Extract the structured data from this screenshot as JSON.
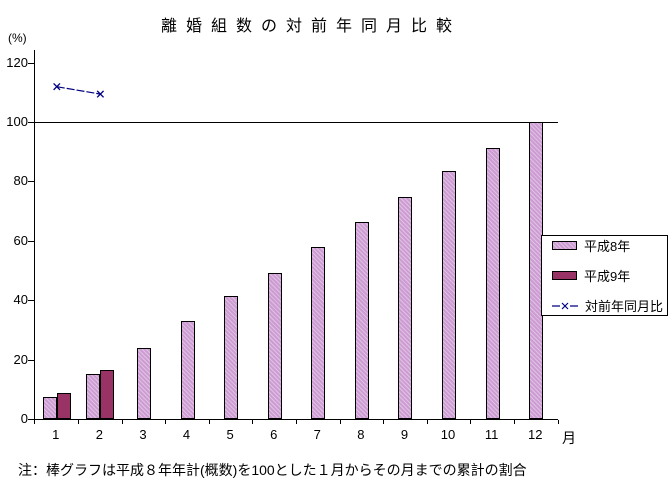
{
  "title": "離婚組数の対前年同月比較",
  "note": "注：棒グラフは平成８年年計(概数)を100とした１月からその月までの累計の割合",
  "y_axis": {
    "unit_label": "(%)",
    "ticks": [
      120,
      100,
      80,
      60,
      40,
      20,
      0
    ]
  },
  "x_axis": {
    "labels": [
      "1",
      "2",
      "3",
      "4",
      "5",
      "6",
      "7",
      "8",
      "9",
      "10",
      "11",
      "12"
    ],
    "unit_label": "月"
  },
  "legend": {
    "items": [
      {
        "label": "平成8年",
        "type": "bar",
        "color": "#CC9CD2"
      },
      {
        "label": "平成9年",
        "type": "bar",
        "color": "#993366"
      },
      {
        "label": "対前年同月比",
        "type": "line",
        "color": "#000080"
      }
    ]
  },
  "colors": {
    "bar_h8": "#CC9CD2",
    "bar_h9": "#993366",
    "line": "#000080",
    "axis": "#000000",
    "background": "#FFFFFF"
  },
  "chart_data": {
    "type": "bar",
    "title": "離婚組数の対前年同月比較",
    "xlabel": "月",
    "ylabel": "(%)",
    "ylim": [
      0,
      124
    ],
    "yticks": [
      0,
      20,
      40,
      60,
      80,
      100,
      120
    ],
    "grid": false,
    "reference_line_y": 100,
    "legend_position": "right",
    "categories": [
      "1",
      "2",
      "3",
      "4",
      "5",
      "6",
      "7",
      "8",
      "9",
      "10",
      "11",
      "12"
    ],
    "series": [
      {
        "name": "平成8年",
        "type": "bar",
        "color": "#CC9CD2",
        "values": [
          7.4,
          15.2,
          23.9,
          33.0,
          41.5,
          49.2,
          57.9,
          66.3,
          74.7,
          83.6,
          91.2,
          100.0
        ]
      },
      {
        "name": "平成9年",
        "type": "bar",
        "color": "#993366",
        "values": [
          8.7,
          16.6,
          null,
          null,
          null,
          null,
          null,
          null,
          null,
          null,
          null,
          null
        ]
      },
      {
        "name": "対前年同月比",
        "type": "line",
        "color": "#000080",
        "marker": "x",
        "values": [
          111.9,
          109.4,
          null,
          null,
          null,
          null,
          null,
          null,
          null,
          null,
          null,
          null
        ]
      }
    ]
  }
}
